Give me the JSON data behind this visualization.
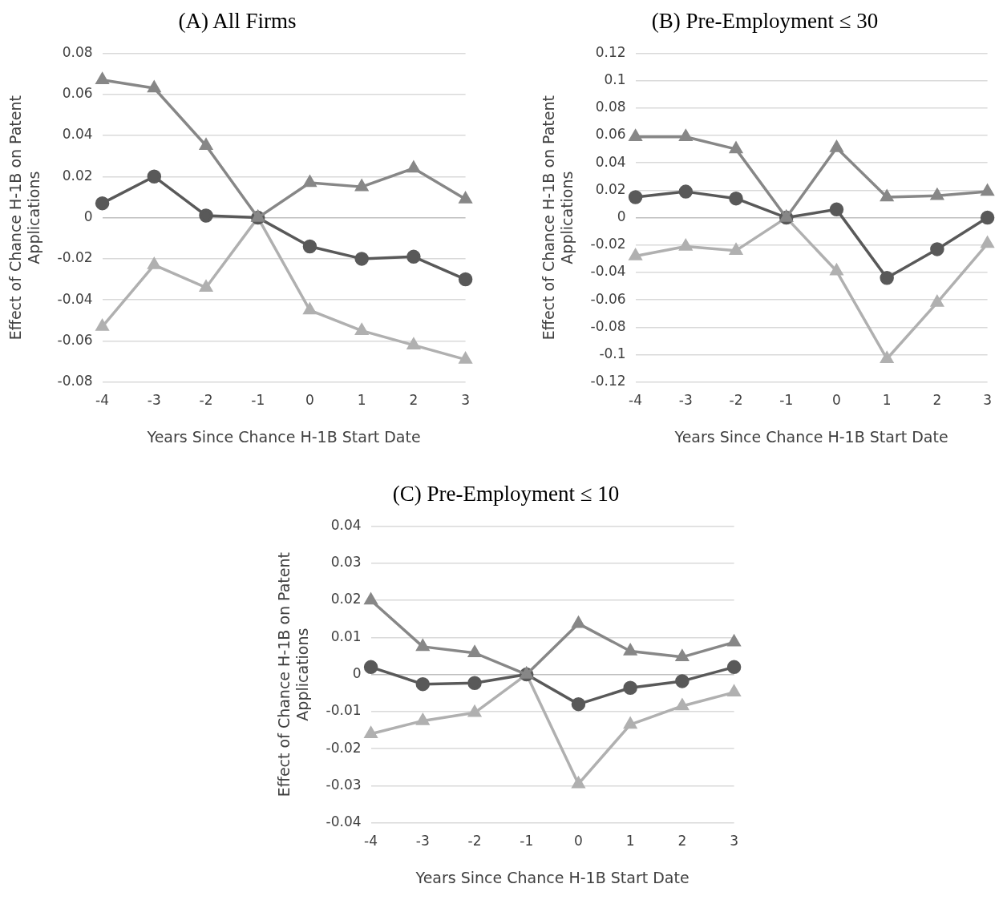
{
  "chart_data": [
    {
      "type": "line",
      "title": "(A) All Firms",
      "xlabel": "Years Since Chance H-1B Start Date",
      "ylabel": "Effect of Chance H-1B on Patent Applications",
      "categories": [
        "-4",
        "-3",
        "-2",
        "-1",
        "0",
        "1",
        "2",
        "3"
      ],
      "ylim": [
        -0.08,
        0.08
      ],
      "yticks": [
        -0.08,
        -0.06,
        -0.04,
        -0.02,
        0,
        0.02,
        0.04,
        0.06,
        0.08
      ],
      "grid": "y",
      "legend": false,
      "line_style": "solid",
      "series": [
        {
          "color": "#878787",
          "marker": "triangle",
          "values": [
            0.067,
            0.063,
            0.035,
            0,
            0.017,
            0.015,
            0.024,
            0.009
          ]
        },
        {
          "color": "#595959",
          "marker": "circle",
          "values": [
            0.007,
            0.02,
            0.001,
            0,
            -0.014,
            -0.02,
            -0.019,
            -0.03
          ]
        },
        {
          "color": "#b0b0b0",
          "marker": "triangle",
          "values": [
            -0.053,
            -0.023,
            -0.034,
            0,
            -0.045,
            -0.055,
            -0.062,
            -0.069
          ]
        }
      ]
    },
    {
      "type": "line",
      "title": "(B) Pre-Employment ≤ 30",
      "xlabel": "Years Since Chance H-1B Start Date",
      "ylabel": "Effect of Chance H-1B on Patent Applications",
      "categories": [
        "-4",
        "-3",
        "-2",
        "-1",
        "0",
        "1",
        "2",
        "3"
      ],
      "ylim": [
        -0.12,
        0.12
      ],
      "yticks": [
        -0.12,
        -0.1,
        -0.08,
        -0.06,
        -0.04,
        -0.02,
        0,
        0.02,
        0.04,
        0.06,
        0.08,
        0.1,
        0.12
      ],
      "grid": "y",
      "legend": false,
      "line_style": "solid",
      "series": [
        {
          "color": "#878787",
          "marker": "triangle",
          "values": [
            0.059,
            0.059,
            0.05,
            0,
            0.051,
            0.015,
            0.016,
            0.019
          ]
        },
        {
          "color": "#595959",
          "marker": "circle",
          "values": [
            0.015,
            0.019,
            0.014,
            0,
            0.006,
            -0.044,
            -0.023,
            0.0
          ]
        },
        {
          "color": "#b0b0b0",
          "marker": "triangle",
          "values": [
            -0.028,
            -0.021,
            -0.024,
            0,
            -0.039,
            -0.103,
            -0.062,
            -0.019
          ]
        }
      ]
    },
    {
      "type": "line",
      "title": "(C) Pre-Employment ≤ 10",
      "xlabel": "Years Since Chance H-1B Start Date",
      "ylabel": "Effect of Chance H-1B on Patent Applications",
      "categories": [
        "-4",
        "-3",
        "-2",
        "-1",
        "0",
        "1",
        "2",
        "3"
      ],
      "ylim": [
        -0.04,
        0.04
      ],
      "yticks": [
        -0.04,
        -0.03,
        -0.02,
        -0.01,
        0,
        0.01,
        0.02,
        0.03,
        0.04
      ],
      "grid": "y",
      "legend": false,
      "line_style": "solid",
      "series": [
        {
          "color": "#878787",
          "marker": "triangle",
          "values": [
            0.02,
            0.0075,
            0.0058,
            0,
            0.0137,
            0.0063,
            0.0047,
            0.0087
          ]
        },
        {
          "color": "#595959",
          "marker": "circle",
          "values": [
            0.002,
            -0.0026,
            -0.0023,
            0,
            -0.008,
            -0.0036,
            -0.0018,
            0.002
          ]
        },
        {
          "color": "#b0b0b0",
          "marker": "triangle",
          "values": [
            -0.016,
            -0.0125,
            -0.0103,
            0,
            -0.0295,
            -0.0135,
            -0.0085,
            -0.0048
          ]
        }
      ]
    }
  ]
}
